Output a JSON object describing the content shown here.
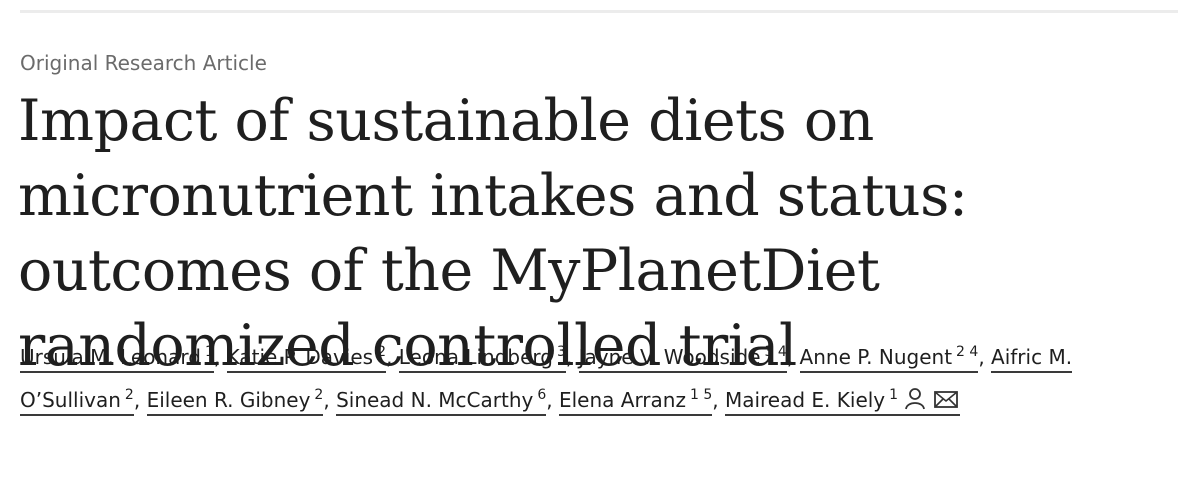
{
  "header": {
    "article_type": "Original Research Article",
    "title": "Impact of sustainable diets on micronutrient intakes and status: outcomes of the MyPlanetDiet randomized controlled trial"
  },
  "authors": [
    {
      "name": "Ursula M. Leonard",
      "affiliations": "1",
      "separator": ","
    },
    {
      "name": "Katie P. Davies",
      "affiliations": "2",
      "separator": ","
    },
    {
      "name": "Leona Lindberg",
      "affiliations": "3",
      "separator": ","
    },
    {
      "name": "Jayne V. Woodside",
      "affiliations": "3 4",
      "separator": ","
    },
    {
      "name": "Anne P. Nugent",
      "affiliations": "2 4",
      "separator": ","
    },
    {
      "name": "Aifric M. O’Sullivan",
      "affiliations": "2",
      "separator": ","
    },
    {
      "name": "Eileen R. Gibney",
      "affiliations": "2",
      "separator": ","
    },
    {
      "name": "Sinead N. McCarthy",
      "affiliations": "6",
      "separator": ","
    },
    {
      "name": "Elena Arranz",
      "affiliations": "1 5",
      "separator": ","
    },
    {
      "name": "Mairead E. Kiely",
      "affiliations": "1"
    }
  ]
}
